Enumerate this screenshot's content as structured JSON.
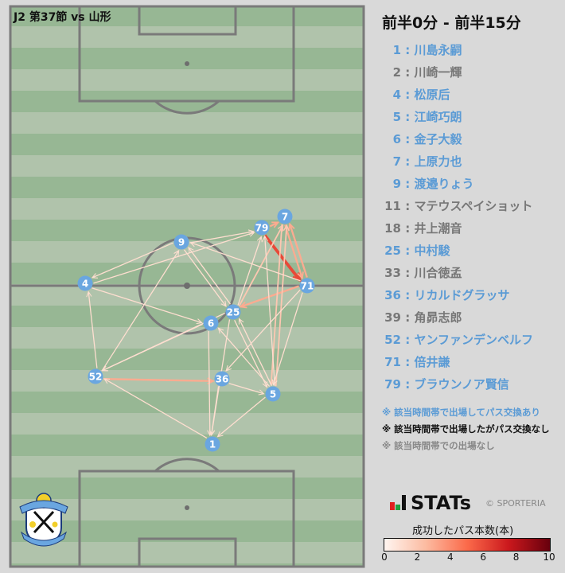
{
  "header": {
    "match_title": "J2 第37節 vs 山形",
    "period": "前半0分 - 前半15分"
  },
  "colors": {
    "active": "#5b9bd5",
    "inactive": "#777777",
    "node": "#6aa6e0",
    "pitch_dark": "#97b794",
    "pitch_light": "#b0c3ab"
  },
  "players": [
    {
      "num": "1",
      "name": "川島永嗣",
      "status": "active"
    },
    {
      "num": "2",
      "name": "川崎一輝",
      "status": "none"
    },
    {
      "num": "4",
      "name": "松原后",
      "status": "active"
    },
    {
      "num": "5",
      "name": "江崎巧朗",
      "status": "active"
    },
    {
      "num": "6",
      "name": "金子大毅",
      "status": "active"
    },
    {
      "num": "7",
      "name": "上原力也",
      "status": "active"
    },
    {
      "num": "9",
      "name": "渡邉りょう",
      "status": "active"
    },
    {
      "num": "11",
      "name": "マテウスペイショット",
      "status": "none"
    },
    {
      "num": "18",
      "name": "井上潮音",
      "status": "none"
    },
    {
      "num": "25",
      "name": "中村駿",
      "status": "active"
    },
    {
      "num": "33",
      "name": "川合徳孟",
      "status": "none"
    },
    {
      "num": "36",
      "name": "リカルドグラッサ",
      "status": "active"
    },
    {
      "num": "39",
      "name": "角昴志郎",
      "status": "none"
    },
    {
      "num": "52",
      "name": "ヤンファンデンベルフ",
      "status": "active"
    },
    {
      "num": "71",
      "name": "倍井謙",
      "status": "active"
    },
    {
      "num": "79",
      "name": "ブラウンノア賢信",
      "status": "active"
    }
  ],
  "notes": [
    {
      "text": "※ 該当時間帯で出場してパス交換あり",
      "color": "#5b9bd5"
    },
    {
      "text": "※ 該当時間帯で出場したがパス交換なし",
      "color": "#111111"
    },
    {
      "text": "※ 該当時間帯での出場なし",
      "color": "#888888"
    }
  ],
  "brand": {
    "name": "STATs",
    "copyright": "© SPORTERIA"
  },
  "colorbar": {
    "title": "成功したパス本数(本)",
    "ticks": [
      "0",
      "2",
      "4",
      "6",
      "8",
      "10"
    ],
    "min": 0,
    "max": 10
  },
  "logo": {
    "text": "JUBILO IWATA SINCE 1994"
  },
  "nodes": [
    {
      "id": "1"
    },
    {
      "id": "4"
    },
    {
      "id": "5"
    },
    {
      "id": "6"
    },
    {
      "id": "7"
    },
    {
      "id": "9"
    },
    {
      "id": "25"
    },
    {
      "id": "36"
    },
    {
      "id": "52"
    },
    {
      "id": "71"
    },
    {
      "id": "79"
    }
  ],
  "passes": [
    {
      "from": "79",
      "to": "71",
      "count": 6
    },
    {
      "from": "71",
      "to": "7",
      "count": 3
    },
    {
      "from": "7",
      "to": "71",
      "count": 3
    },
    {
      "from": "71",
      "to": "25",
      "count": 3
    },
    {
      "from": "79",
      "to": "7",
      "count": 3
    },
    {
      "from": "52",
      "to": "36",
      "count": 3
    },
    {
      "from": "5",
      "to": "7",
      "count": 2
    },
    {
      "from": "7",
      "to": "5",
      "count": 2
    },
    {
      "from": "25",
      "to": "7",
      "count": 2
    },
    {
      "from": "4",
      "to": "79",
      "count": 1
    },
    {
      "from": "9",
      "to": "4",
      "count": 1
    },
    {
      "from": "9",
      "to": "79",
      "count": 1
    },
    {
      "from": "71",
      "to": "9",
      "count": 1
    },
    {
      "from": "4",
      "to": "6",
      "count": 1
    },
    {
      "from": "9",
      "to": "25",
      "count": 1
    },
    {
      "from": "25",
      "to": "9",
      "count": 1
    },
    {
      "from": "52",
      "to": "4",
      "count": 1
    },
    {
      "from": "52",
      "to": "9",
      "count": 1
    },
    {
      "from": "6",
      "to": "52",
      "count": 1
    },
    {
      "from": "25",
      "to": "52",
      "count": 1
    },
    {
      "from": "1",
      "to": "52",
      "count": 1
    },
    {
      "from": "36",
      "to": "1",
      "count": 1
    },
    {
      "from": "6",
      "to": "1",
      "count": 1
    },
    {
      "from": "25",
      "to": "1",
      "count": 1
    },
    {
      "from": "5",
      "to": "1",
      "count": 1
    },
    {
      "from": "36",
      "to": "5",
      "count": 1
    },
    {
      "from": "25",
      "to": "5",
      "count": 1
    },
    {
      "from": "5",
      "to": "25",
      "count": 1
    },
    {
      "from": "5",
      "to": "6",
      "count": 1
    },
    {
      "from": "71",
      "to": "36",
      "count": 1
    },
    {
      "from": "71",
      "to": "5",
      "count": 1
    },
    {
      "from": "25",
      "to": "79",
      "count": 1
    },
    {
      "from": "5",
      "to": "79",
      "count": 1
    }
  ]
}
